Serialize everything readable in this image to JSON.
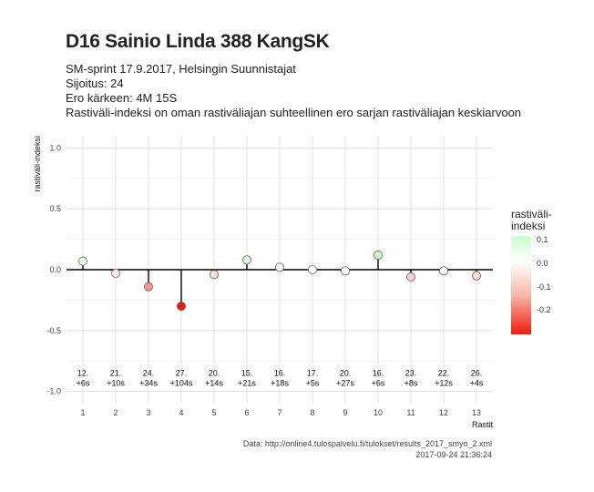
{
  "header": {
    "title": "D16 Sainio Linda 388 KangSK",
    "subtitle_lines": [
      "SM-sprint 17.9.2017, Helsingin Suunnistajat",
      "Sijoitus: 24",
      "Ero kärkeen: 4M 15S",
      "Rastiväli-indeksi on oman rastiväliajan suhteellinen ero sarjan rastiväliajan keskiarvoon"
    ]
  },
  "legend": {
    "title_line1": "rastiväli-",
    "title_line2": "indeksi",
    "ticks": [
      "0.1",
      "0.0",
      "-0.1",
      "-0.2"
    ],
    "tick_values": [
      0.1,
      0.0,
      -0.1,
      -0.2
    ],
    "range": [
      -0.3,
      0.12
    ],
    "colors": {
      "high": "#ccffcc",
      "mid": "#ffffff",
      "low": "#f31a0d"
    }
  },
  "caption": {
    "source": "Data: http://online4.tulospalvelu.fi/tulokset/results_2017_smyo_2.xml",
    "timestamp": "2017-09-24 21:36:24"
  },
  "chart_data": {
    "type": "scatter",
    "subtype": "lollipop",
    "xlabel": "Rastit",
    "ylabel": "rastiväli-indeksi",
    "ylim": [
      -1.0,
      1.0
    ],
    "yticks": [
      -1.0,
      -0.5,
      0.0,
      0.5,
      1.0
    ],
    "ytick_labels": [
      "-1.0",
      "-0.5",
      "0.0",
      "0.5",
      "1.0"
    ],
    "x": [
      1,
      2,
      3,
      4,
      5,
      6,
      7,
      8,
      9,
      10,
      11,
      12,
      13
    ],
    "values": [
      0.07,
      -0.03,
      -0.14,
      -0.3,
      -0.04,
      0.08,
      0.02,
      0.0,
      -0.01,
      0.12,
      -0.06,
      -0.01,
      -0.05
    ],
    "labels": [
      [
        "12.",
        "+6s"
      ],
      [
        "21.",
        "+10s"
      ],
      [
        "24.",
        "+34s"
      ],
      [
        "27.",
        "+104s"
      ],
      [
        "20.",
        "+14s"
      ],
      [
        "15.",
        "+21s"
      ],
      [
        "16.",
        "+18s"
      ],
      [
        "17.",
        "+5s"
      ],
      [
        "20.",
        "+27s"
      ],
      [
        "16.",
        "+6s"
      ],
      [
        "23.",
        "+8s"
      ],
      [
        "22.",
        "+12s"
      ],
      [
        "26.",
        "+4s"
      ]
    ],
    "label_y": -0.91,
    "grid": true,
    "legend_position": "right"
  }
}
